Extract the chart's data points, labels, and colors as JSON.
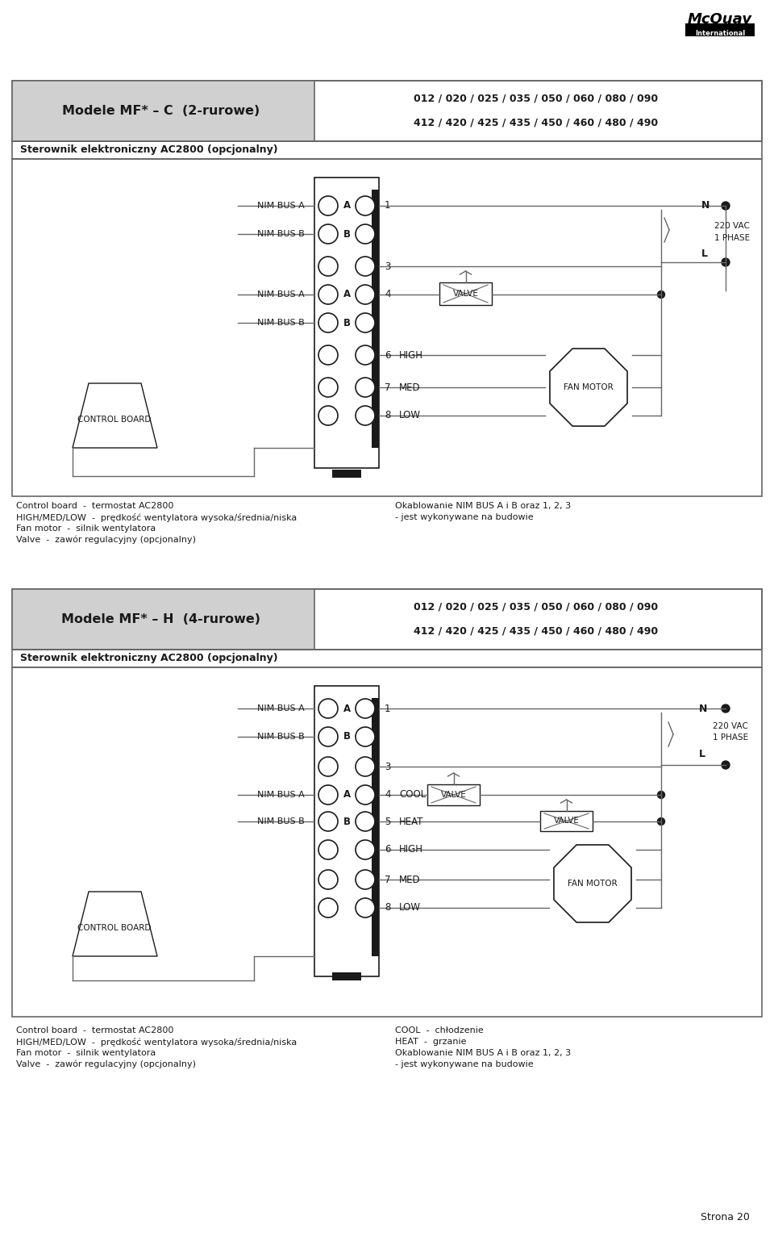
{
  "bg_color": "#ffffff",
  "line_color": "#666666",
  "dark_color": "#1a1a1a",
  "gray_bg": "#d0d0d0",
  "page_title": "Strona 20",
  "s1_title": "Modele MF* – C  (2-rurowe)",
  "s1_models1": "012 / 020 / 025 / 035 / 050 / 060 / 080 / 090",
  "s1_models2": "412 / 420 / 425 / 435 / 450 / 460 / 480 / 490",
  "s1_subtitle": "Sterownik elektroniczny AC2800 (opcjonalny)",
  "s2_title": "Modele MF* – H  (4-rurowe)",
  "s2_models1": "012 / 020 / 025 / 035 / 050 / 060 / 080 / 090",
  "s2_models2": "412 / 420 / 425 / 435 / 450 / 460 / 480 / 490",
  "s2_subtitle": "Sterownik elektroniczny AC2800 (opcjonalny)",
  "fl1s1": "Control board  -  termostat AC2800",
  "fl2s1": "HIGH/MED/LOW  -  prędkość wentylatora wysoka/średnia/niska",
  "fl3s1": "Fan motor  -  silnik wentylatora",
  "fl4s1": "Valve  -  zawór regulacyjny (opcjonalny)",
  "fr1s1": "Okablowanie NIM BUS A i B oraz 1, 2, 3",
  "fr2s1": "- jest wykonywane na budowie",
  "fl1s2": "Control board  -  termostat AC2800",
  "fl2s2": "HIGH/MED/LOW  -  prędkość wentylatora wysoka/średnia/niska",
  "fl3s2": "Fan motor  -  silnik wentylatora",
  "fl4s2": "Valve  -  zawór regulacyjny (opcjonalny)",
  "fr1s2": "COOL  -  chłodzenie",
  "fr2s2": "HEAT  -  grzanie",
  "fr3s2": "Okablowanie NIM BUS A i B oraz 1, 2, 3",
  "fr4s2": "- jest wykonywane na budowie",
  "mcquay_line1": "McQuay",
  "mcquay_line2": "International"
}
